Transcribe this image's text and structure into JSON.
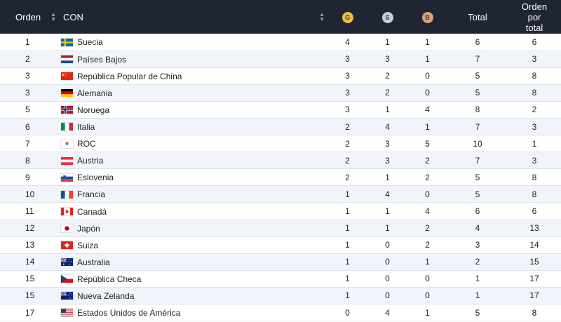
{
  "colors": {
    "header_bg": "#1f2533",
    "gold": "#e9bf45",
    "silver": "#c9cfd6",
    "bronze": "#d9a37a",
    "row_alt": "#f1f5fb"
  },
  "header": {
    "rank": "Orden",
    "noc": "CON",
    "gold": "G",
    "silver": "S",
    "bronze": "B",
    "total": "Total",
    "rank_by_total": "Orden por total"
  },
  "rows": [
    {
      "rank": "1",
      "country": "Suecia",
      "flag": "sweden",
      "gold": "4",
      "silver": "1",
      "bronze": "1",
      "total": "6",
      "rank_by_total": "6"
    },
    {
      "rank": "2",
      "country": "Países Bajos",
      "flag": "netherlands",
      "gold": "3",
      "silver": "3",
      "bronze": "1",
      "total": "7",
      "rank_by_total": "3"
    },
    {
      "rank": "3",
      "country": "República Popular de China",
      "flag": "china",
      "gold": "3",
      "silver": "2",
      "bronze": "0",
      "total": "5",
      "rank_by_total": "8"
    },
    {
      "rank": "3",
      "country": "Alemania",
      "flag": "germany",
      "gold": "3",
      "silver": "2",
      "bronze": "0",
      "total": "5",
      "rank_by_total": "8"
    },
    {
      "rank": "5",
      "country": "Noruega",
      "flag": "norway",
      "gold": "3",
      "silver": "1",
      "bronze": "4",
      "total": "8",
      "rank_by_total": "2"
    },
    {
      "rank": "6",
      "country": "Italia",
      "flag": "italy",
      "gold": "2",
      "silver": "4",
      "bronze": "1",
      "total": "7",
      "rank_by_total": "3"
    },
    {
      "rank": "7",
      "country": "ROC",
      "flag": "roc",
      "gold": "2",
      "silver": "3",
      "bronze": "5",
      "total": "10",
      "rank_by_total": "1"
    },
    {
      "rank": "8",
      "country": "Austria",
      "flag": "austria",
      "gold": "2",
      "silver": "3",
      "bronze": "2",
      "total": "7",
      "rank_by_total": "3"
    },
    {
      "rank": "9",
      "country": "Eslovenia",
      "flag": "slovenia",
      "gold": "2",
      "silver": "1",
      "bronze": "2",
      "total": "5",
      "rank_by_total": "8"
    },
    {
      "rank": "10",
      "country": "Francia",
      "flag": "france",
      "gold": "1",
      "silver": "4",
      "bronze": "0",
      "total": "5",
      "rank_by_total": "8"
    },
    {
      "rank": "11",
      "country": "Canadá",
      "flag": "canada",
      "gold": "1",
      "silver": "1",
      "bronze": "4",
      "total": "6",
      "rank_by_total": "6"
    },
    {
      "rank": "12",
      "country": "Japón",
      "flag": "japan",
      "gold": "1",
      "silver": "1",
      "bronze": "2",
      "total": "4",
      "rank_by_total": "13"
    },
    {
      "rank": "13",
      "country": "Suiza",
      "flag": "switzerland",
      "gold": "1",
      "silver": "0",
      "bronze": "2",
      "total": "3",
      "rank_by_total": "14"
    },
    {
      "rank": "14",
      "country": "Australia",
      "flag": "australia",
      "gold": "1",
      "silver": "0",
      "bronze": "1",
      "total": "2",
      "rank_by_total": "15"
    },
    {
      "rank": "15",
      "country": "República Checa",
      "flag": "czech-republic",
      "gold": "1",
      "silver": "0",
      "bronze": "0",
      "total": "1",
      "rank_by_total": "17"
    },
    {
      "rank": "15",
      "country": "Nueva Zelanda",
      "flag": "new-zealand",
      "gold": "1",
      "silver": "0",
      "bronze": "0",
      "total": "1",
      "rank_by_total": "17"
    },
    {
      "rank": "17",
      "country": "Estados Unidos de América",
      "flag": "usa",
      "gold": "0",
      "silver": "4",
      "bronze": "1",
      "total": "5",
      "rank_by_total": "8"
    }
  ]
}
